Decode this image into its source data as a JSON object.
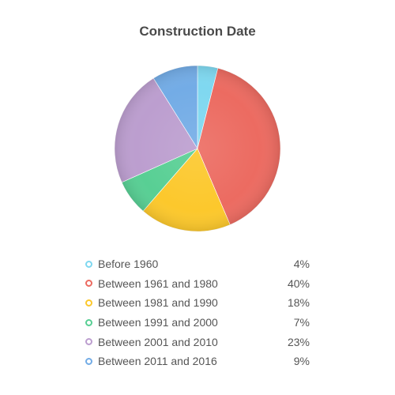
{
  "chart_data": {
    "type": "pie",
    "title": "Construction Date",
    "slices": [
      {
        "label": "Before 1960",
        "value": 4,
        "display": "4%",
        "color": "#7fd8f0"
      },
      {
        "label": "Between 1961 and 1980",
        "value": 40,
        "display": "40%",
        "color": "#ec6b61"
      },
      {
        "label": "Between 1981 and 1990",
        "value": 18,
        "display": "18%",
        "color": "#fcc82c"
      },
      {
        "label": "Between 1991 and 2000",
        "value": 7,
        "display": "7%",
        "color": "#58cf94"
      },
      {
        "label": "Between 2001 and 2010",
        "value": 23,
        "display": "23%",
        "color": "#bc9ecf"
      },
      {
        "label": "Between 2011 and 2016",
        "value": 9,
        "display": "9%",
        "color": "#73ace6"
      }
    ],
    "legend_position": "bottom"
  }
}
